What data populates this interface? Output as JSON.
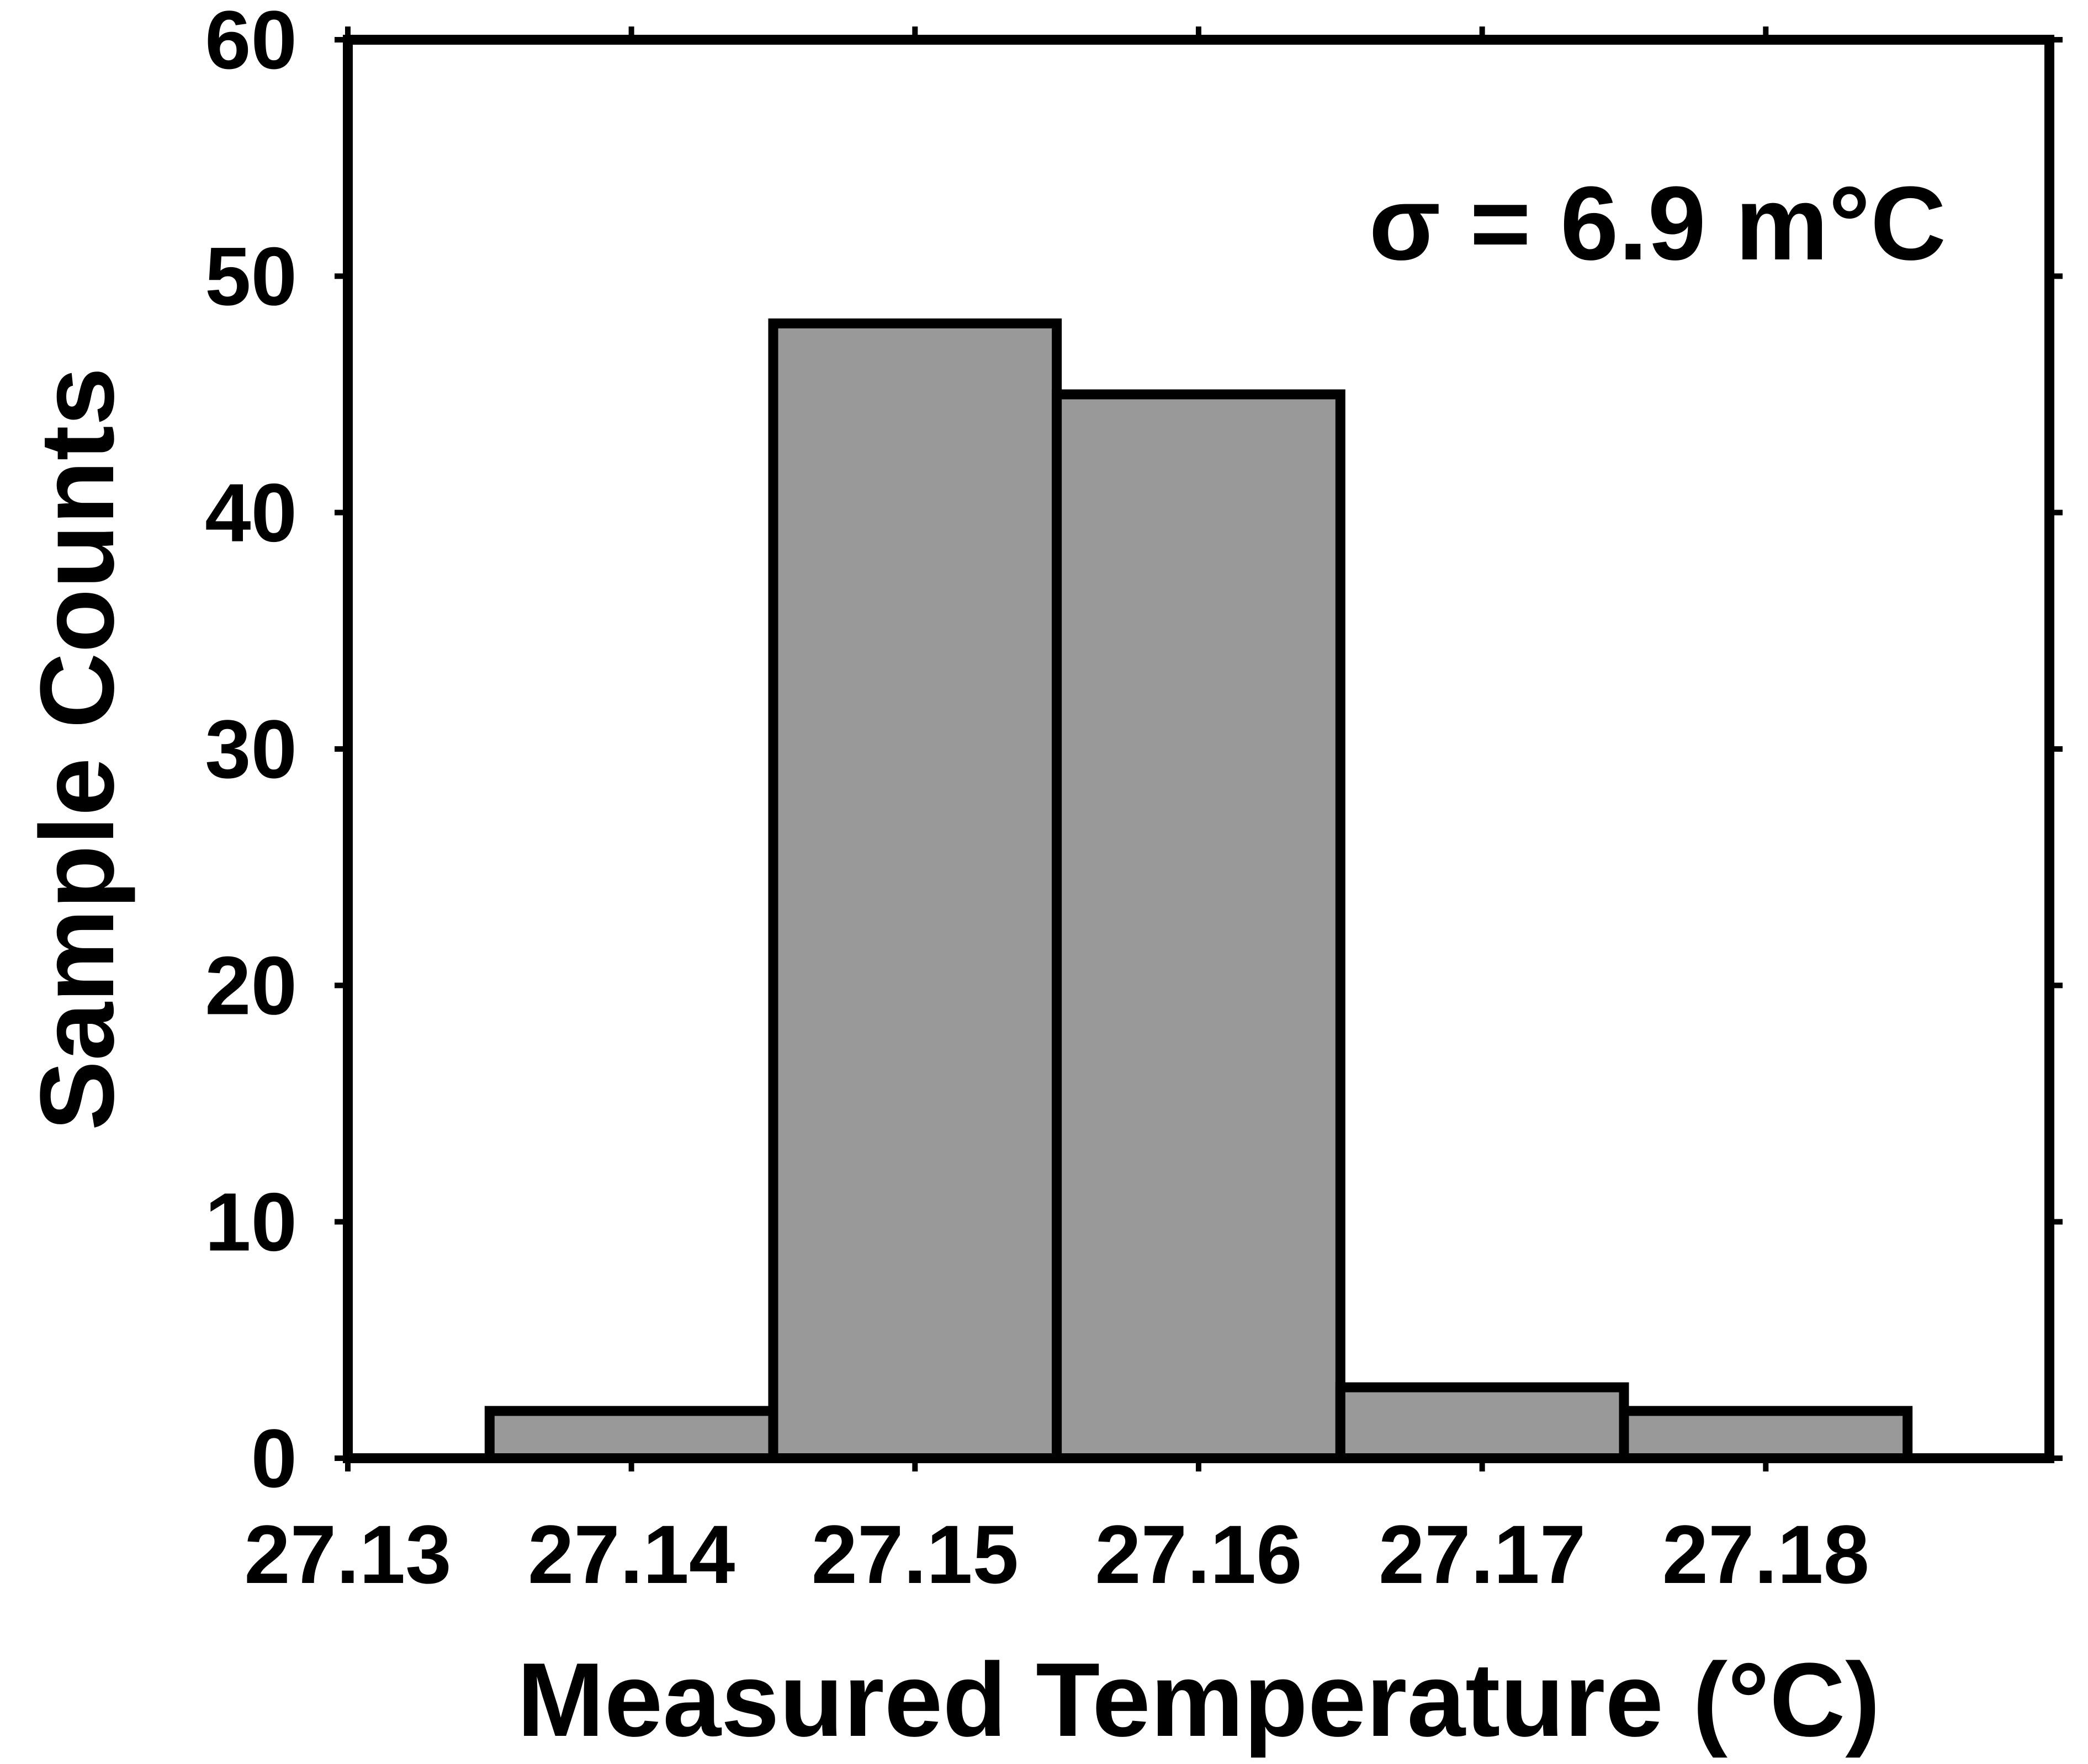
{
  "chart_data": {
    "type": "bar",
    "bins": [
      {
        "start": 27.135,
        "end": 27.145,
        "count": 2
      },
      {
        "start": 27.145,
        "end": 27.155,
        "count": 48
      },
      {
        "start": 27.155,
        "end": 27.165,
        "count": 45
      },
      {
        "start": 27.165,
        "end": 27.175,
        "count": 3
      },
      {
        "start": 27.175,
        "end": 27.185,
        "count": 2
      }
    ],
    "xlabel": "Measured Temperature (°C)",
    "ylabel": "Sample Counts",
    "annotation": "σ = 6.9 m°C",
    "xlim": [
      27.13,
      27.19
    ],
    "ylim": [
      0,
      60
    ],
    "xticks": [
      "27.13",
      "27.14",
      "27.15",
      "27.16",
      "27.17",
      "27.18"
    ],
    "yticks": [
      "0",
      "10",
      "20",
      "30",
      "40",
      "50",
      "60"
    ],
    "grid": false,
    "colors": {
      "bar_fill": "#999999",
      "bar_edge": "#000000",
      "axis": "#000000"
    }
  }
}
